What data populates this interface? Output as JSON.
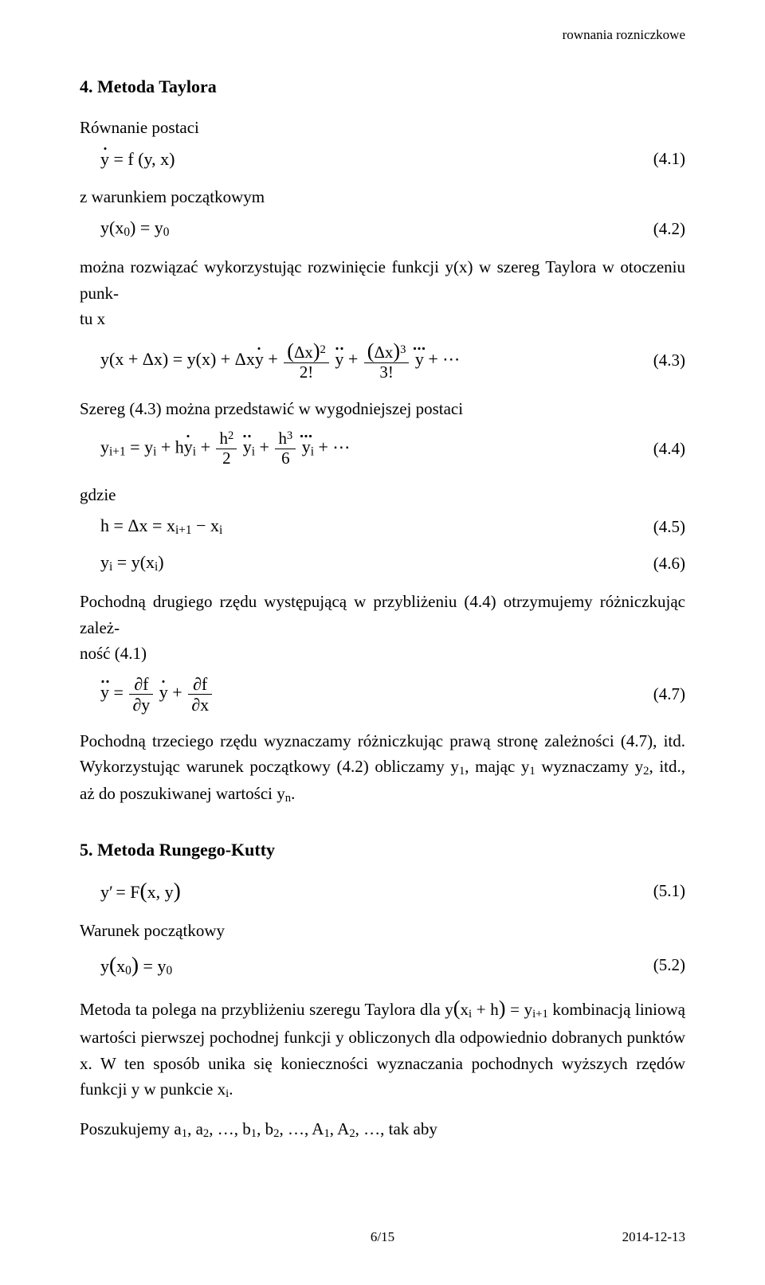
{
  "running_head": "rownania rozniczkowe",
  "section4": {
    "title": "4. Metoda Taylora",
    "p_eq_postaci": "Równanie postaci",
    "eq1": {
      "num": "(4.1)"
    },
    "p_warunek": "z warunkiem początkowym",
    "eq2": {
      "num": "(4.2)"
    },
    "p_rozwiazac_a": "można rozwiązać wykorzystując rozwinięcie funkcji y(x) w szereg Taylora w otoczeniu punk-",
    "p_rozwiazac_b": "tu x",
    "eq3": {
      "num": "(4.3)"
    },
    "p_szereg": "Szereg (4.3) można przedstawić w wygodniejszej postaci",
    "eq4": {
      "num": "(4.4)"
    },
    "p_gdzie": "gdzie",
    "eq5": {
      "num": "(4.5)"
    },
    "eq6": {
      "num": "(4.6)"
    },
    "p_pochodna2_a": "Pochodną drugiego rzędu występującą w przybliżeniu (4.4) otrzymujemy różniczkując zależ-",
    "p_pochodna2_b": "ność (4.1)",
    "eq7": {
      "num": "(4.7)"
    },
    "p_pochodna3": "Pochodną trzeciego rzędu wyznaczamy różniczkując prawą stronę zależności (4.7), itd. Wykorzystując warunek początkowy (4.2) obliczamy y",
    "p_pochodna3_tail1": ", mając y",
    "p_pochodna3_tail2": " wyznaczamy y",
    "p_pochodna3_tail3": ", itd., aż do poszukiwanej wartości y",
    "sub1": "1",
    "sub2": "2",
    "subn": "n"
  },
  "section5": {
    "title": "5. Metoda Rungego-Kutty",
    "eq1": {
      "num": "(5.1)"
    },
    "p_warunek": "Warunek początkowy",
    "eq2": {
      "num": "(5.2)"
    },
    "p_metoda": "Metoda ta polega na przybliżeniu szeregu Taylora dla  y",
    "p_metoda_tail": " kombinacją liniową wartości pierwszej pochodnej funkcji y obliczonych dla odpowiednio dobranych punktów x. W ten sposób unika się konieczności wyznaczania pochodnych wyższych rzędów funkcji y w punkcie x",
    "p_poszukujemy": "Poszukujemy  a",
    "comma_a2": ", a",
    "dots": ", …, b",
    "comma_b2": ", b",
    "dots2": ", …,  A",
    "comma_A2": ", A",
    "tail": ", …,  tak aby",
    "subi": "i",
    "subip1": "i+1",
    "sub0": "0",
    "sub1": "1",
    "sub2": "2"
  },
  "footer": {
    "page": "6/15",
    "date": "2014-12-13"
  }
}
